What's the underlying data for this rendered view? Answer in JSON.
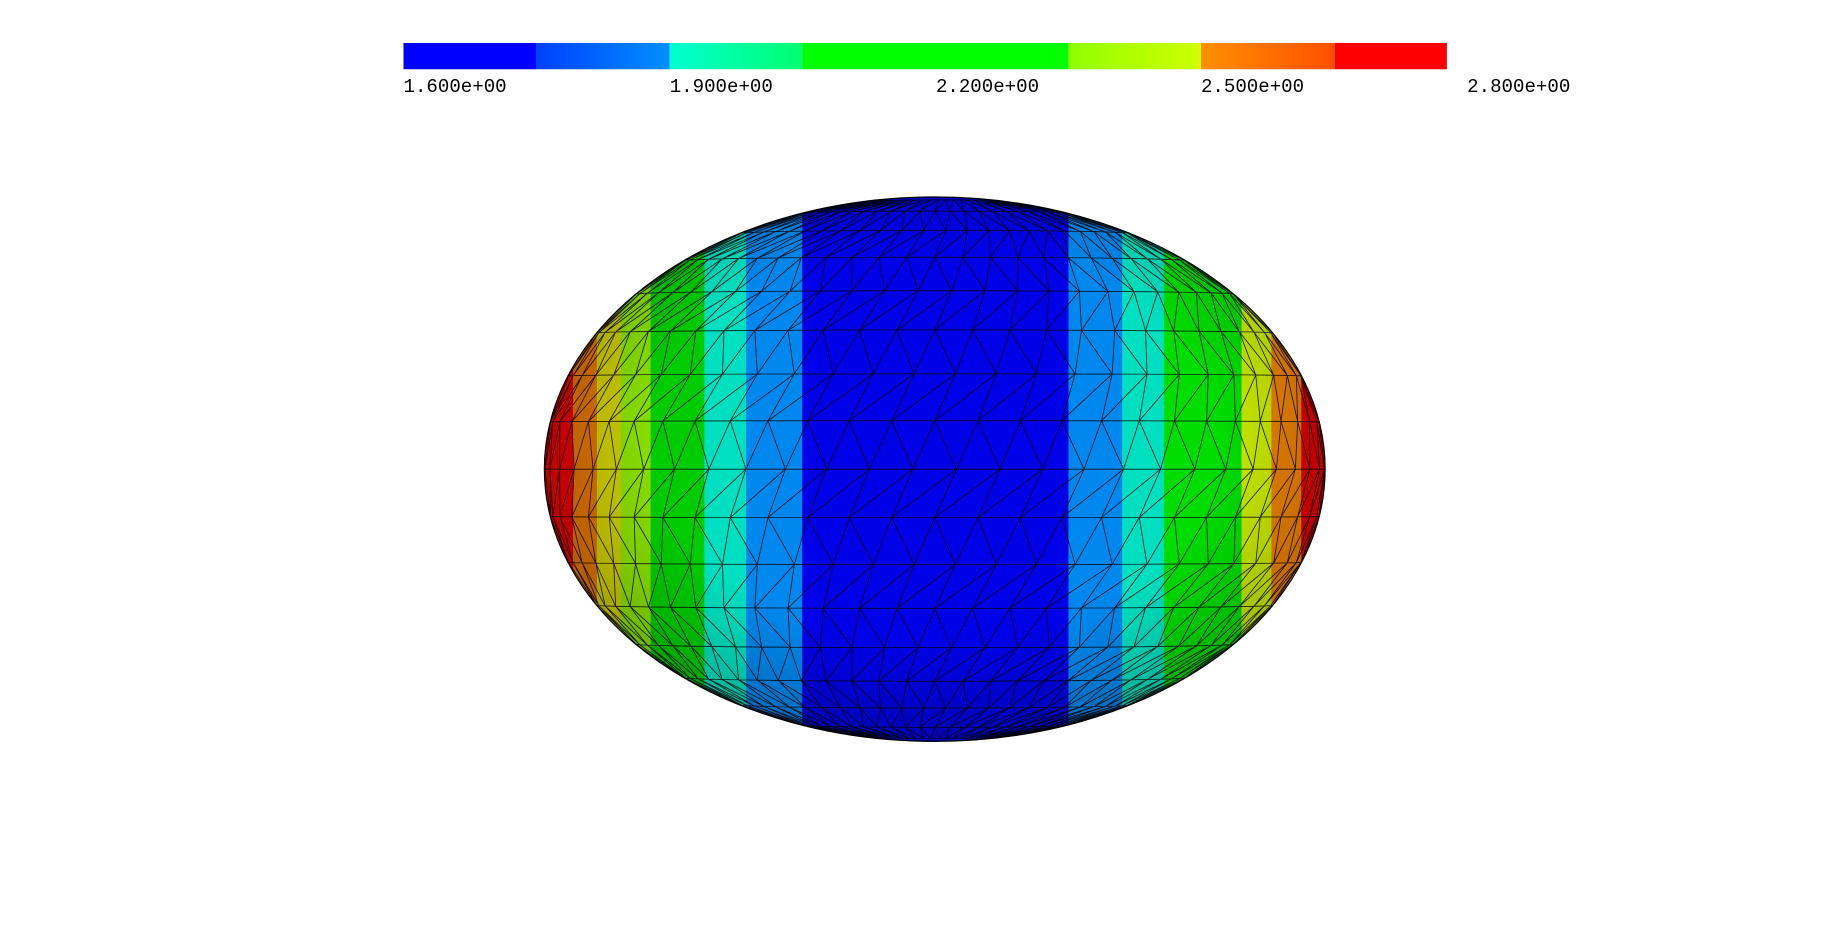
{
  "colorbar": {
    "labels": [
      "1.600e+00",
      "1.900e+00",
      "2.200e+00",
      "2.500e+00",
      "2.800e+00"
    ]
  }
}
